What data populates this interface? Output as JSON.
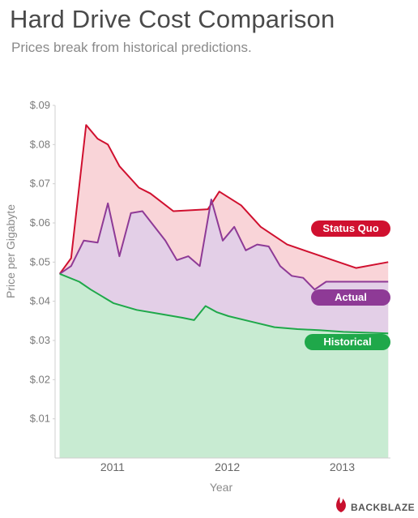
{
  "chart_data": {
    "type": "area",
    "title": "Hard Drive Cost Comparison",
    "subtitle": "Prices break from historical predictions.",
    "xlabel": "Year",
    "ylabel": "Price per Gigabyte",
    "ylim": [
      0,
      0.09
    ],
    "xlim": [
      2010.5,
      2013.42
    ],
    "yticks": [
      {
        "value": 0.01,
        "label": "$.01"
      },
      {
        "value": 0.02,
        "label": "$.02"
      },
      {
        "value": 0.03,
        "label": "$.03"
      },
      {
        "value": 0.04,
        "label": "$.04"
      },
      {
        "value": 0.05,
        "label": "$.05"
      },
      {
        "value": 0.06,
        "label": "$.06"
      },
      {
        "value": 0.07,
        "label": "$.07"
      },
      {
        "value": 0.08,
        "label": "$.08"
      },
      {
        "value": 0.09,
        "label": "$.09"
      }
    ],
    "xticks": [
      {
        "value": 2011.0,
        "label": "2011"
      },
      {
        "value": 2012.0,
        "label": "2012"
      },
      {
        "value": 2013.0,
        "label": "2013"
      }
    ],
    "grid": false,
    "series": [
      {
        "name": "Status Quo",
        "color": "#d0102f",
        "fill": "#f9d4d8",
        "points": [
          [
            2010.54,
            0.047
          ],
          [
            2010.64,
            0.051
          ],
          [
            2010.77,
            0.085
          ],
          [
            2010.87,
            0.0815
          ],
          [
            2010.96,
            0.08
          ],
          [
            2011.06,
            0.0745
          ],
          [
            2011.23,
            0.069
          ],
          [
            2011.33,
            0.0675
          ],
          [
            2011.53,
            0.063
          ],
          [
            2011.83,
            0.0635
          ],
          [
            2011.93,
            0.068
          ],
          [
            2012.12,
            0.0645
          ],
          [
            2012.29,
            0.059
          ],
          [
            2012.52,
            0.0545
          ],
          [
            2012.72,
            0.0525
          ],
          [
            2012.92,
            0.0505
          ],
          [
            2013.12,
            0.0485
          ],
          [
            2013.4,
            0.05
          ]
        ]
      },
      {
        "name": "Actual",
        "color": "#8e3a96",
        "fill": "#e3cfe7",
        "points": [
          [
            2010.54,
            0.047
          ],
          [
            2010.64,
            0.049
          ],
          [
            2010.75,
            0.0555
          ],
          [
            2010.87,
            0.055
          ],
          [
            2010.96,
            0.065
          ],
          [
            2011.06,
            0.0515
          ],
          [
            2011.16,
            0.0625
          ],
          [
            2011.26,
            0.063
          ],
          [
            2011.46,
            0.0555
          ],
          [
            2011.56,
            0.0505
          ],
          [
            2011.66,
            0.0515
          ],
          [
            2011.76,
            0.049
          ],
          [
            2011.86,
            0.066
          ],
          [
            2011.96,
            0.0555
          ],
          [
            2012.06,
            0.059
          ],
          [
            2012.16,
            0.053
          ],
          [
            2012.26,
            0.0545
          ],
          [
            2012.36,
            0.054
          ],
          [
            2012.46,
            0.049
          ],
          [
            2012.56,
            0.0465
          ],
          [
            2012.66,
            0.046
          ],
          [
            2012.76,
            0.043
          ],
          [
            2012.86,
            0.045
          ],
          [
            2013.4,
            0.045
          ]
        ]
      },
      {
        "name": "Historical",
        "color": "#1fa84a",
        "fill": "#c8ebd2",
        "points": [
          [
            2010.54,
            0.047
          ],
          [
            2010.71,
            0.045
          ],
          [
            2010.81,
            0.043
          ],
          [
            2011.01,
            0.0395
          ],
          [
            2011.21,
            0.0378
          ],
          [
            2011.41,
            0.0368
          ],
          [
            2011.61,
            0.0358
          ],
          [
            2011.71,
            0.0352
          ],
          [
            2011.81,
            0.0388
          ],
          [
            2011.91,
            0.0372
          ],
          [
            2012.01,
            0.0362
          ],
          [
            2012.21,
            0.0348
          ],
          [
            2012.41,
            0.0334
          ],
          [
            2012.61,
            0.0329
          ],
          [
            2012.81,
            0.0326
          ],
          [
            2013.01,
            0.0322
          ],
          [
            2013.4,
            0.0318
          ]
        ]
      }
    ]
  },
  "branding": {
    "logo_text": "BACKBLAZE",
    "logo_icon": "flame-icon"
  }
}
